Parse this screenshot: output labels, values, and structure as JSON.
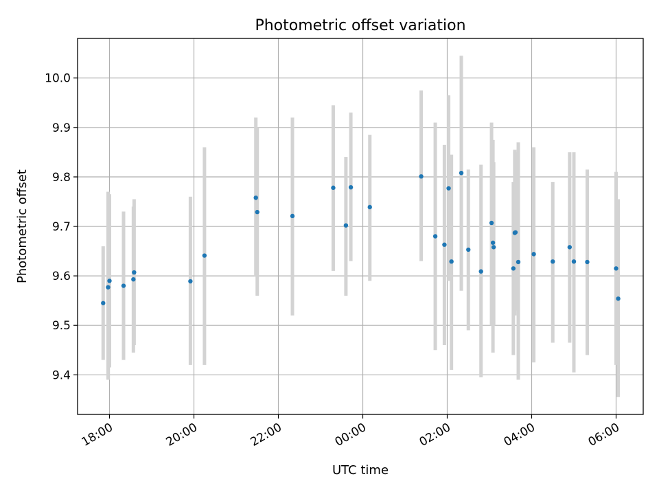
{
  "chart_data": {
    "type": "scatter",
    "title": "Photometric offset variation",
    "xlabel": "UTC time",
    "ylabel": "Photometric offset",
    "x_start": "17:00",
    "x_ticks": [
      "18:00",
      "20:00",
      "22:00",
      "00:00",
      "02:00",
      "04:00",
      "06:00"
    ],
    "y_ticks": [
      9.4,
      9.5,
      9.6,
      9.7,
      9.8,
      9.9,
      10.0
    ],
    "ylim": [
      9.32,
      10.08
    ],
    "grid": true,
    "point_color": "#1f77b4",
    "errorbar_color": "#d3d3d3",
    "points": [
      {
        "t": "17:51",
        "y": 9.545,
        "ylo": 9.43,
        "yhi": 9.66
      },
      {
        "t": "17:58",
        "y": 9.577,
        "ylo": 9.39,
        "yhi": 9.77
      },
      {
        "t": "18:00",
        "y": 9.59,
        "ylo": 9.415,
        "yhi": 9.765
      },
      {
        "t": "18:20",
        "y": 9.58,
        "ylo": 9.43,
        "yhi": 9.73
      },
      {
        "t": "18:34",
        "y": 9.593,
        "ylo": 9.445,
        "yhi": 9.74
      },
      {
        "t": "18:35",
        "y": 9.607,
        "ylo": 9.46,
        "yhi": 9.755
      },
      {
        "t": "19:55",
        "y": 9.589,
        "ylo": 9.42,
        "yhi": 9.76
      },
      {
        "t": "20:15",
        "y": 9.641,
        "ylo": 9.42,
        "yhi": 9.86
      },
      {
        "t": "21:28",
        "y": 9.758,
        "ylo": 9.6,
        "yhi": 9.92
      },
      {
        "t": "21:30",
        "y": 9.729,
        "ylo": 9.56,
        "yhi": 9.9
      },
      {
        "t": "22:20",
        "y": 9.721,
        "ylo": 9.52,
        "yhi": 9.92
      },
      {
        "t": "23:18",
        "y": 9.778,
        "ylo": 9.61,
        "yhi": 9.945
      },
      {
        "t": "23:36",
        "y": 9.702,
        "ylo": 9.56,
        "yhi": 9.84
      },
      {
        "t": "23:43",
        "y": 9.779,
        "ylo": 9.63,
        "yhi": 9.93
      },
      {
        "t": "00:10",
        "y": 9.739,
        "ylo": 9.59,
        "yhi": 9.885
      },
      {
        "t": "01:23",
        "y": 9.801,
        "ylo": 9.63,
        "yhi": 9.975
      },
      {
        "t": "01:43",
        "y": 9.68,
        "ylo": 9.45,
        "yhi": 9.91
      },
      {
        "t": "01:56",
        "y": 9.663,
        "ylo": 9.46,
        "yhi": 9.865
      },
      {
        "t": "02:02",
        "y": 9.777,
        "ylo": 9.59,
        "yhi": 9.965
      },
      {
        "t": "02:06",
        "y": 9.629,
        "ylo": 9.41,
        "yhi": 9.845
      },
      {
        "t": "02:20",
        "y": 9.808,
        "ylo": 9.57,
        "yhi": 10.045
      },
      {
        "t": "02:30",
        "y": 9.653,
        "ylo": 9.49,
        "yhi": 9.815
      },
      {
        "t": "02:48",
        "y": 9.609,
        "ylo": 9.395,
        "yhi": 9.825
      },
      {
        "t": "03:03",
        "y": 9.707,
        "ylo": 9.5,
        "yhi": 9.91
      },
      {
        "t": "03:05",
        "y": 9.667,
        "ylo": 9.445,
        "yhi": 9.875
      },
      {
        "t": "03:06",
        "y": 9.658,
        "ylo": 9.5,
        "yhi": 9.83
      },
      {
        "t": "03:34",
        "y": 9.615,
        "ylo": 9.44,
        "yhi": 9.79
      },
      {
        "t": "03:36",
        "y": 9.687,
        "ylo": 9.52,
        "yhi": 9.855
      },
      {
        "t": "03:37",
        "y": 9.688,
        "ylo": 9.53,
        "yhi": 9.85
      },
      {
        "t": "03:41",
        "y": 9.628,
        "ylo": 9.39,
        "yhi": 9.87
      },
      {
        "t": "04:03",
        "y": 9.644,
        "ylo": 9.425,
        "yhi": 9.86
      },
      {
        "t": "04:30",
        "y": 9.629,
        "ylo": 9.465,
        "yhi": 9.79
      },
      {
        "t": "04:54",
        "y": 9.658,
        "ylo": 9.465,
        "yhi": 9.85
      },
      {
        "t": "05:00",
        "y": 9.629,
        "ylo": 9.405,
        "yhi": 9.85
      },
      {
        "t": "05:19",
        "y": 9.628,
        "ylo": 9.44,
        "yhi": 9.815
      },
      {
        "t": "06:00",
        "y": 9.615,
        "ylo": 9.42,
        "yhi": 9.81
      },
      {
        "t": "06:03",
        "y": 9.554,
        "ylo": 9.355,
        "yhi": 9.755
      }
    ]
  }
}
